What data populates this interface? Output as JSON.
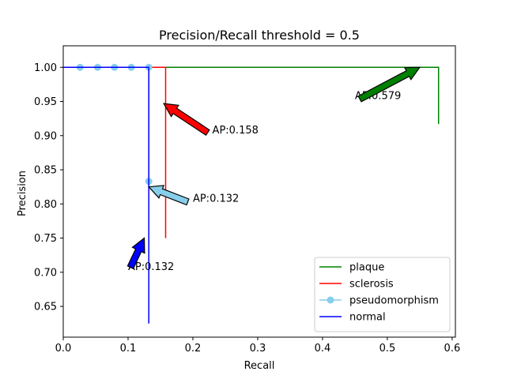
{
  "chart_data": {
    "type": "line",
    "title": "Precision/Recall threshold = 0.5",
    "xlabel": "Recall",
    "ylabel": "Precision",
    "xlim": [
      0.0,
      0.605
    ],
    "ylim": [
      0.605,
      1.0315
    ],
    "xticks": [
      0.0,
      0.1,
      0.2,
      0.3,
      0.4,
      0.5,
      0.6
    ],
    "xtick_labels": [
      "0.0",
      "0.1",
      "0.2",
      "0.3",
      "0.4",
      "0.5",
      "0.6"
    ],
    "yticks": [
      0.65,
      0.7,
      0.75,
      0.8,
      0.85,
      0.9,
      0.95,
      1.0
    ],
    "ytick_labels": [
      "0.65",
      "0.70",
      "0.75",
      "0.80",
      "0.85",
      "0.90",
      "0.95",
      "1.00"
    ],
    "grid": false,
    "legend_position": "lower right",
    "series": [
      {
        "name": "plaque",
        "color": "#008000",
        "marker": false,
        "x": [
          0.0,
          0.579,
          0.579
        ],
        "y": [
          1.0,
          1.0,
          0.917
        ]
      },
      {
        "name": "sclerosis",
        "color": "#ff0000",
        "marker": false,
        "x": [
          0.0,
          0.158,
          0.158
        ],
        "y": [
          1.0,
          1.0,
          0.75
        ]
      },
      {
        "name": "pseudomorphism",
        "color": "#87ceeb",
        "marker": true,
        "x": [
          0.026,
          0.053,
          0.079,
          0.105,
          0.132,
          0.132
        ],
        "y": [
          1.0,
          1.0,
          1.0,
          1.0,
          1.0,
          0.833
        ]
      },
      {
        "name": "normal",
        "color": "#0000ff",
        "marker": false,
        "x": [
          0.0,
          0.132,
          0.132
        ],
        "y": [
          1.0,
          1.0,
          0.625
        ]
      }
    ],
    "annotations": [
      {
        "text": "AP:0.579",
        "series": "plaque",
        "color": "#008000",
        "tip": [
          0.55,
          1.0
        ],
        "text_at": [
          0.45,
          0.95
        ]
      },
      {
        "text": "AP:0.158",
        "series": "sclerosis",
        "color": "#ff0000",
        "tip": [
          0.155,
          0.947
        ],
        "text_at": [
          0.23,
          0.9
        ]
      },
      {
        "text": "AP:0.132",
        "series": "pseudomorphism",
        "color": "#87ceeb",
        "tip": [
          0.132,
          0.825
        ],
        "text_at": [
          0.2,
          0.8
        ]
      },
      {
        "text": "AP:0.132",
        "series": "normal",
        "color": "#0000ff",
        "tip": [
          0.125,
          0.75
        ],
        "text_at": [
          0.1,
          0.7
        ]
      }
    ]
  }
}
